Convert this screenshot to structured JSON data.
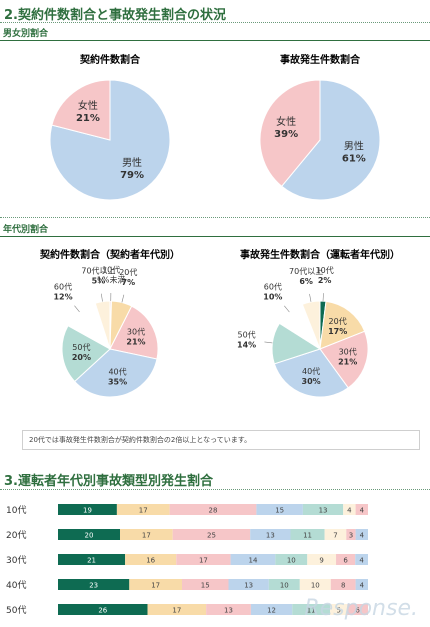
{
  "section2": {
    "title": "2.契約件数割合と事故発生割合の状況"
  },
  "gender": {
    "header": "男女別割合"
  },
  "age": {
    "header": "年代別割合"
  },
  "note": "20代では事故発生件数割合が契約件数割合の2倍以上となっています。",
  "section3": {
    "title": "3.運転者年代別事故類型別発生割合"
  },
  "watermark": "Response.",
  "chart_data": [
    {
      "type": "pie",
      "title": "契約件数割合",
      "slices": [
        {
          "label": "男性",
          "value": 79,
          "color": "#bcd4ec"
        },
        {
          "label": "女性",
          "value": 21,
          "color": "#f6c6c8"
        }
      ]
    },
    {
      "type": "pie",
      "title": "事故発生件数割合",
      "slices": [
        {
          "label": "男性",
          "value": 61,
          "color": "#bcd4ec"
        },
        {
          "label": "女性",
          "value": 39,
          "color": "#f6c6c8"
        }
      ]
    },
    {
      "type": "pie",
      "title": "契約件数割合（契約者年代別）",
      "slices": [
        {
          "label": "10代 1%未満",
          "value": 0.5,
          "color": "#f8d8dc"
        },
        {
          "label": "20代",
          "value": 7,
          "color": "#f8dba8"
        },
        {
          "label": "30代",
          "value": 21,
          "color": "#f6c6c8"
        },
        {
          "label": "40代",
          "value": 35,
          "color": "#bcd4ec"
        },
        {
          "label": "50代",
          "value": 20,
          "color": "#b4dcd4"
        },
        {
          "label": "60代",
          "value": 12,
          "color": "#ffffff"
        },
        {
          "label": "70代以上",
          "value": 5,
          "color": "#fdf1dc"
        }
      ]
    },
    {
      "type": "pie",
      "title": "事故発生件数割合（運転者年代別）",
      "slices": [
        {
          "label": "10代",
          "value": 2,
          "color": "#0e6b52"
        },
        {
          "label": "20代",
          "value": 17,
          "color": "#f8dba8"
        },
        {
          "label": "30代",
          "value": 21,
          "color": "#f6c6c8"
        },
        {
          "label": "40代",
          "value": 30,
          "color": "#bcd4ec"
        },
        {
          "label": "50代",
          "value": 14,
          "color": "#b4dcd4"
        },
        {
          "label": "60代",
          "value": 10,
          "color": "#ffffff"
        },
        {
          "label": "70代以上",
          "value": 6,
          "color": "#fdf1dc"
        }
      ]
    },
    {
      "type": "bar",
      "orientation": "horizontal",
      "stacked": true,
      "categories": [
        "10代",
        "20代",
        "30代",
        "40代",
        "50代"
      ],
      "colors": [
        "#0e6b52",
        "#f8dba8",
        "#f6c6c8",
        "#bcd4ec",
        "#b4dcd4",
        "#fdf1dc",
        "#f6c6c8",
        "#bcd4ec"
      ],
      "rows": [
        [
          19,
          17,
          28,
          15,
          13,
          4,
          4
        ],
        [
          20,
          17,
          25,
          13,
          11,
          7,
          3,
          4
        ],
        [
          21,
          16,
          17,
          14,
          10,
          9,
          6,
          4
        ],
        [
          23,
          17,
          15,
          13,
          10,
          10,
          8,
          4
        ],
        [
          26,
          17,
          13,
          12,
          11,
          5,
          6
        ]
      ]
    }
  ]
}
